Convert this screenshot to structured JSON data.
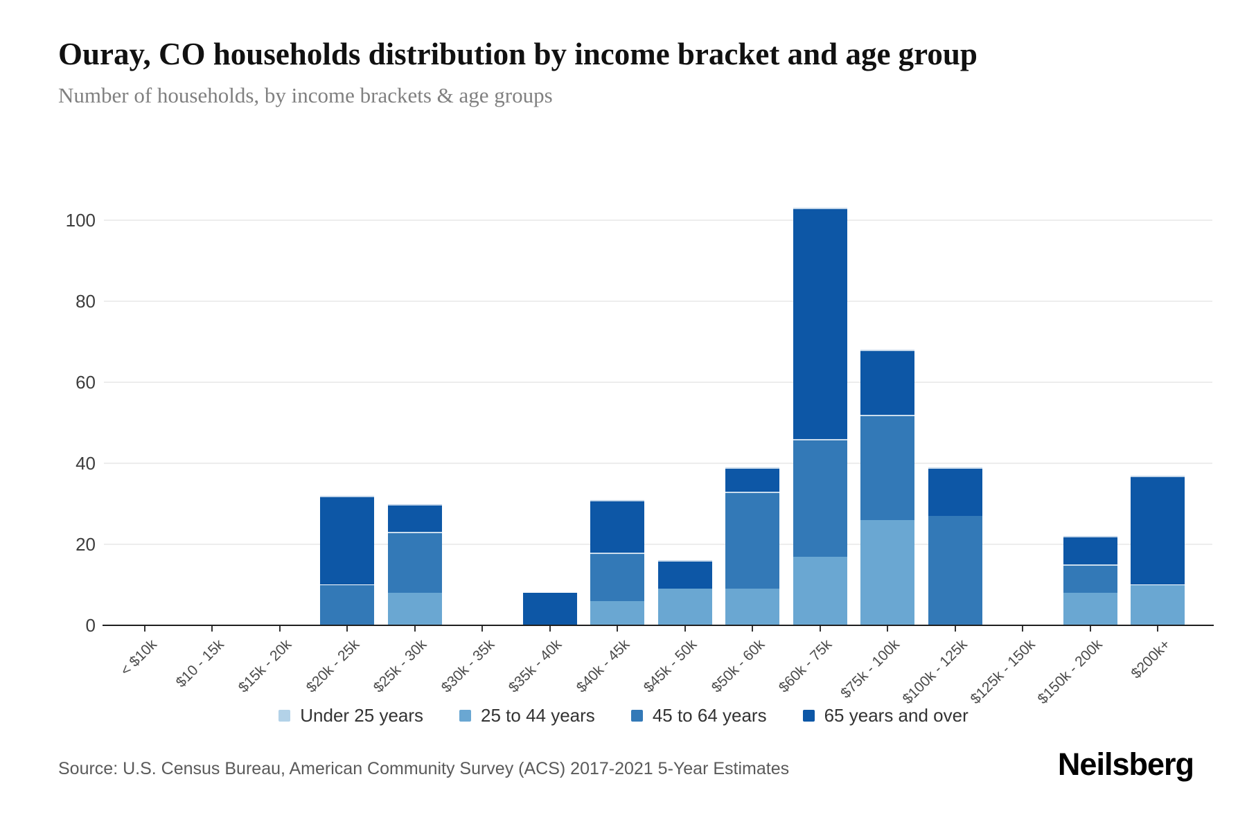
{
  "header": {
    "title": "Ouray, CO households distribution by income bracket and age group",
    "subtitle": "Number of households, by income brackets & age groups"
  },
  "footer": {
    "source": "Source: U.S. Census Bureau, American Community Survey (ACS) 2017-2021 5-Year Estimates",
    "brand": "Neilsberg"
  },
  "chart_data": {
    "type": "bar",
    "stacked": true,
    "title": "Ouray, CO households distribution by income bracket and age group",
    "subtitle": "Number of households, by income brackets & age groups",
    "xlabel": "",
    "ylabel": "",
    "ylim": [
      0,
      110
    ],
    "yticks": [
      0,
      20,
      40,
      60,
      80,
      100
    ],
    "grid": true,
    "legend_position": "bottom",
    "categories": [
      "< $10k",
      "$10 - 15k",
      "$15k - 20k",
      "$20k - 25k",
      "$25k - 30k",
      "$30k - 35k",
      "$35k - 40k",
      "$40k - 45k",
      "$45k - 50k",
      "$50k - 60k",
      "$60k - 75k",
      "$75k - 100k",
      "$100k - 125k",
      "$125k - 150k",
      "$150k - 200k",
      "$200k+"
    ],
    "series": [
      {
        "name": "Under 25 years",
        "color": "#b3d2e8",
        "values": [
          0,
          0,
          0,
          0,
          0,
          0,
          0,
          0,
          0,
          0,
          0,
          0,
          0,
          0,
          0,
          0
        ]
      },
      {
        "name": "25 to 44 years",
        "color": "#6aa7d2",
        "values": [
          0,
          0,
          0,
          0,
          8,
          0,
          0,
          6,
          9,
          9,
          17,
          26,
          0,
          0,
          8,
          10
        ]
      },
      {
        "name": "45 to 64 years",
        "color": "#3379b7",
        "values": [
          0,
          0,
          0,
          10,
          15,
          0,
          0,
          12,
          0,
          24,
          29,
          26,
          27,
          0,
          7,
          0
        ]
      },
      {
        "name": "65 years and over",
        "color": "#0d57a6",
        "values": [
          0,
          0,
          0,
          22,
          7,
          0,
          8,
          13,
          7,
          6,
          57,
          16,
          12,
          0,
          7,
          27
        ]
      }
    ],
    "totals": [
      0,
      0,
      0,
      32,
      30,
      0,
      8,
      31,
      16,
      39,
      103,
      68,
      39,
      0,
      22,
      37
    ]
  }
}
